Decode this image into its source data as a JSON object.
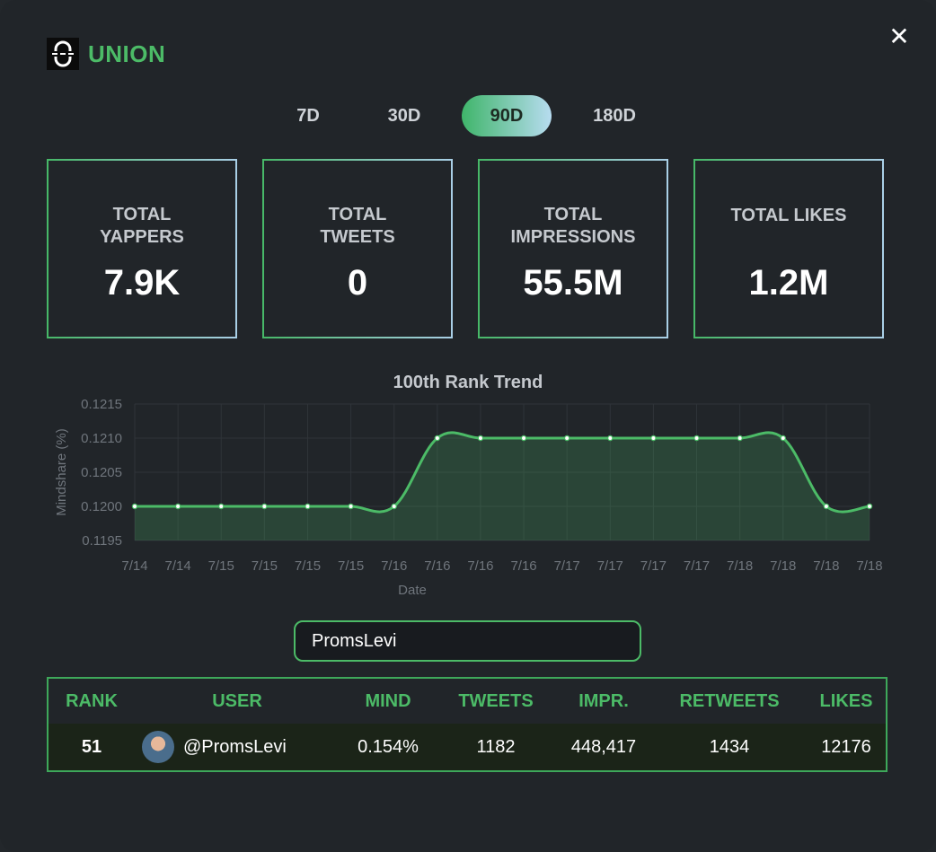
{
  "header": {
    "brand": "UNION",
    "logo_icon": "union-logo-icon"
  },
  "close_label": "✕",
  "tabs": [
    {
      "label": "7D",
      "active": false
    },
    {
      "label": "30D",
      "active": false
    },
    {
      "label": "90D",
      "active": true
    },
    {
      "label": "180D",
      "active": false
    }
  ],
  "stats": [
    {
      "label_line1": "TOTAL",
      "label_line2": "YAPPERS",
      "value": "7.9K"
    },
    {
      "label_line1": "TOTAL",
      "label_line2": "TWEETS",
      "value": "0"
    },
    {
      "label_line1": "TOTAL",
      "label_line2": "IMPRESSIONS",
      "value": "55.5M"
    },
    {
      "label_line1": "TOTAL LIKES",
      "label_line2": "",
      "value": "1.2M"
    }
  ],
  "chart_data": {
    "type": "area",
    "title": "100th Rank Trend",
    "xlabel": "Date",
    "ylabel": "Mindshare (%)",
    "ylim": [
      0.1195,
      0.1215
    ],
    "yticks": [
      "0.1215",
      "0.1210",
      "0.1205",
      "0.1200",
      "0.1195"
    ],
    "ytick_values": [
      0.1215,
      0.121,
      0.1205,
      0.12,
      0.1195
    ],
    "categories": [
      "7/14",
      "7/14",
      "7/15",
      "7/15",
      "7/15",
      "7/15",
      "7/16",
      "7/16",
      "7/16",
      "7/16",
      "7/17",
      "7/17",
      "7/17",
      "7/17",
      "7/18",
      "7/18",
      "7/18",
      "7/18"
    ],
    "values": [
      0.12,
      0.12,
      0.12,
      0.12,
      0.12,
      0.12,
      0.12,
      0.121,
      0.121,
      0.121,
      0.121,
      0.121,
      0.121,
      0.121,
      0.121,
      0.121,
      0.12,
      0.12
    ],
    "grid": true,
    "color": "#4cbb67"
  },
  "search": {
    "value": "PromsLevi",
    "placeholder": ""
  },
  "table": {
    "headers": [
      "RANK",
      "USER",
      "MIND",
      "TWEETS",
      "IMPR.",
      "RETWEETS",
      "LIKES"
    ],
    "rows": [
      {
        "rank": "51",
        "user": "@PromsLevi",
        "mind": "0.154%",
        "tweets": "1182",
        "impressions": "448,417",
        "retweets": "1434",
        "likes": "12176"
      }
    ]
  }
}
